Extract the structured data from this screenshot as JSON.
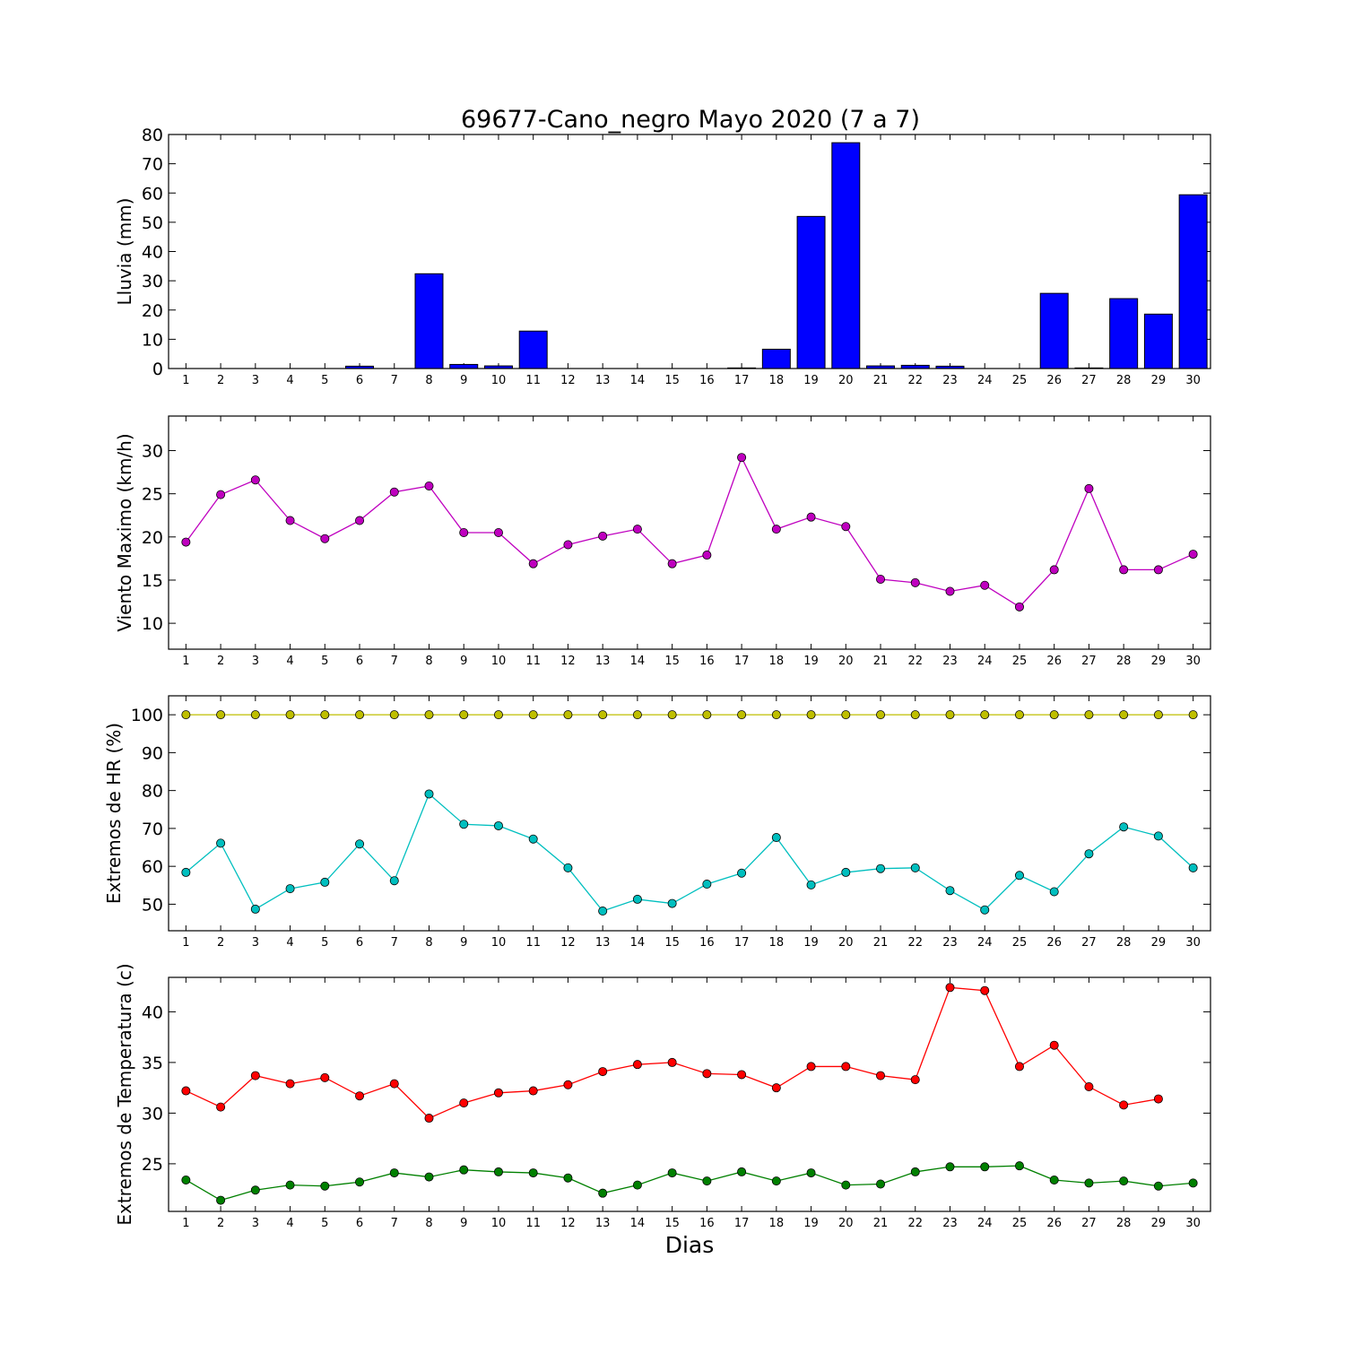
{
  "chart_data": {
    "type": "multi-panel",
    "title": "69677-Cano_negro Mayo 2020  (7 a 7)",
    "xlabel": "Dias",
    "days": [
      1,
      2,
      3,
      4,
      5,
      6,
      7,
      8,
      9,
      10,
      11,
      12,
      13,
      14,
      15,
      16,
      17,
      18,
      19,
      20,
      21,
      22,
      23,
      24,
      25,
      26,
      27,
      28,
      29,
      30
    ],
    "panels": [
      {
        "id": "lluvia",
        "type": "bar",
        "ylabel": "Lluvia (mm)",
        "ylim": [
          0,
          80
        ],
        "yticks": [
          0,
          10,
          20,
          30,
          40,
          50,
          60,
          70,
          80
        ],
        "series": [
          {
            "color": "#0000ff",
            "values": [
              0,
              0,
              0,
              0,
              0,
              0.8,
              0,
              32.4,
              1.4,
              0.9,
              12.8,
              0,
              0,
              0,
              0,
              0,
              0.2,
              6.6,
              52.0,
              77.2,
              0.9,
              1.1,
              0.8,
              0,
              0,
              25.7,
              0.2,
              23.9,
              18.6,
              59.4
            ]
          }
        ]
      },
      {
        "id": "viento",
        "type": "line",
        "ylabel": "Viento Maximo (km/h)",
        "ylim": [
          7,
          34
        ],
        "yticks": [
          10,
          15,
          20,
          25,
          30
        ],
        "series": [
          {
            "color": "#bf00bf",
            "values": [
              19.4,
              24.9,
              26.6,
              21.9,
              19.8,
              21.9,
              25.2,
              25.9,
              20.5,
              20.5,
              16.9,
              19.1,
              20.1,
              20.9,
              16.9,
              17.9,
              29.2,
              20.9,
              22.3,
              21.2,
              15.1,
              14.7,
              13.7,
              14.4,
              11.9,
              16.2,
              25.6,
              16.2,
              16.2,
              18.0
            ]
          }
        ]
      },
      {
        "id": "hr",
        "type": "line",
        "ylabel": "Extremos de HR (%)",
        "ylim": [
          43,
          105
        ],
        "yticks": [
          50,
          60,
          70,
          80,
          90,
          100
        ],
        "series": [
          {
            "color": "#bfbf00",
            "values": [
              100,
              100,
              100,
              100,
              100,
              100,
              100,
              100,
              100,
              100,
              100,
              100,
              100,
              100,
              100,
              100,
              100,
              100,
              100,
              100,
              100,
              100,
              100,
              100,
              100,
              100,
              100,
              100,
              100,
              100
            ]
          },
          {
            "color": "#00bfbf",
            "values": [
              58.4,
              66.1,
              48.7,
              54.1,
              55.8,
              65.9,
              56.2,
              79.1,
              71.1,
              70.7,
              67.2,
              59.6,
              48.2,
              51.3,
              50.2,
              55.3,
              58.2,
              67.6,
              55.1,
              58.4,
              59.4,
              59.6,
              53.6,
              48.5,
              57.6,
              53.3,
              63.3,
              70.4,
              68.0,
              59.6
            ]
          }
        ]
      },
      {
        "id": "temperatura",
        "type": "line",
        "ylabel": "Extremos de Temperatura (c)",
        "ylim": [
          20.3,
          43.4
        ],
        "yticks": [
          25,
          30,
          35,
          40
        ],
        "series": [
          {
            "color": "#ff0000",
            "values": [
              32.2,
              30.6,
              33.7,
              32.9,
              33.5,
              31.7,
              32.9,
              29.5,
              31.0,
              32.0,
              32.2,
              32.8,
              34.1,
              34.8,
              35.0,
              33.9,
              33.8,
              32.5,
              34.6,
              34.6,
              33.7,
              33.3,
              42.4,
              42.1,
              34.6,
              36.7,
              32.6,
              30.8,
              31.4,
              null
            ]
          },
          {
            "color": "#008000",
            "values": [
              23.4,
              21.4,
              22.4,
              22.9,
              22.8,
              23.2,
              24.1,
              23.7,
              24.4,
              24.2,
              24.1,
              23.6,
              22.1,
              22.9,
              24.1,
              23.3,
              24.2,
              23.3,
              24.1,
              22.9,
              23.0,
              24.2,
              24.7,
              24.7,
              24.8,
              23.4,
              23.1,
              23.3,
              22.8,
              23.1
            ]
          }
        ]
      }
    ]
  }
}
